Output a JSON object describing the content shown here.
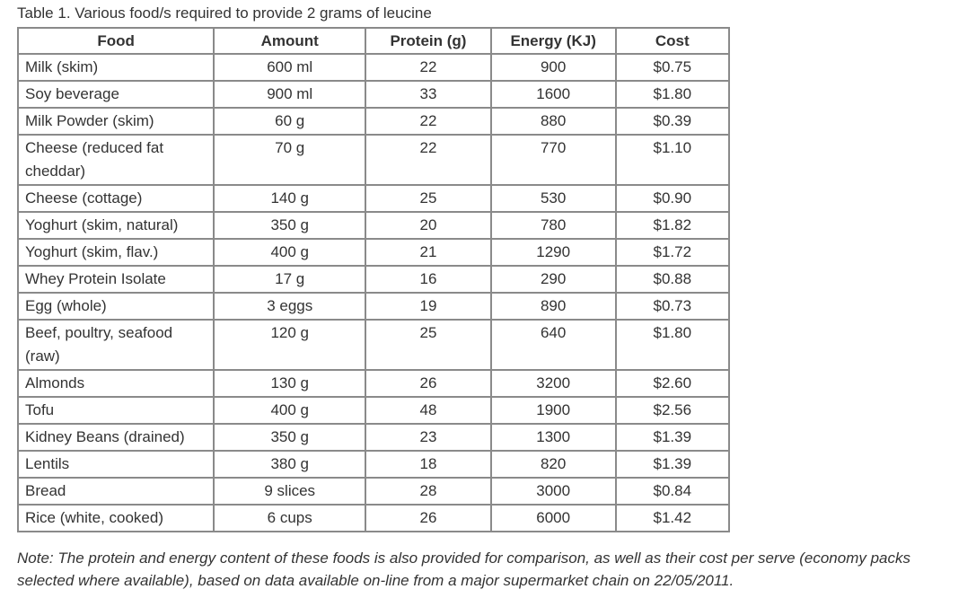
{
  "caption": "Table 1. Various food/s required to provide 2 grams of leucine",
  "table": {
    "headers": [
      "Food",
      "Amount",
      "Protein (g)",
      "Energy (KJ)",
      "Cost"
    ],
    "rows": [
      [
        "Milk (skim)",
        "600 ml",
        "22",
        "900",
        "$0.75"
      ],
      [
        "Soy beverage",
        "900 ml",
        "33",
        "1600",
        "$1.80"
      ],
      [
        "Milk Powder (skim)",
        "60 g",
        "22",
        "880",
        "$0.39"
      ],
      [
        "Cheese (reduced fat cheddar)",
        "70 g",
        "22",
        "770",
        "$1.10"
      ],
      [
        "Cheese (cottage)",
        "140 g",
        "25",
        "530",
        "$0.90"
      ],
      [
        "Yoghurt (skim, natural)",
        "350 g",
        "20",
        "780",
        "$1.82"
      ],
      [
        "Yoghurt (skim, flav.)",
        "400 g",
        "21",
        "1290",
        "$1.72"
      ],
      [
        "Whey Protein Isolate",
        "17 g",
        "16",
        "290",
        "$0.88"
      ],
      [
        "Egg (whole)",
        "3 eggs",
        "19",
        "890",
        "$0.73"
      ],
      [
        "Beef, poultry, seafood (raw)",
        "120 g",
        "25",
        "640",
        "$1.80"
      ],
      [
        "Almonds",
        "130 g",
        "26",
        "3200",
        "$2.60"
      ],
      [
        "Tofu",
        "400 g",
        "48",
        "1900",
        "$2.56"
      ],
      [
        "Kidney Beans (drained)",
        "350 g",
        "23",
        "1300",
        "$1.39"
      ],
      [
        "Lentils",
        "380 g",
        "18",
        "820",
        "$1.39"
      ],
      [
        "Bread",
        "9 slices",
        "28",
        "3000",
        "$0.84"
      ],
      [
        "Rice (white, cooked)",
        "6 cups",
        "26",
        "6000",
        "$1.42"
      ]
    ]
  },
  "note": "Note: The protein and energy content of these foods is also provided for comparison, as well as their cost per serve (economy packs selected where available), based on data available on-line from a major supermarket chain on 22/05/2011."
}
